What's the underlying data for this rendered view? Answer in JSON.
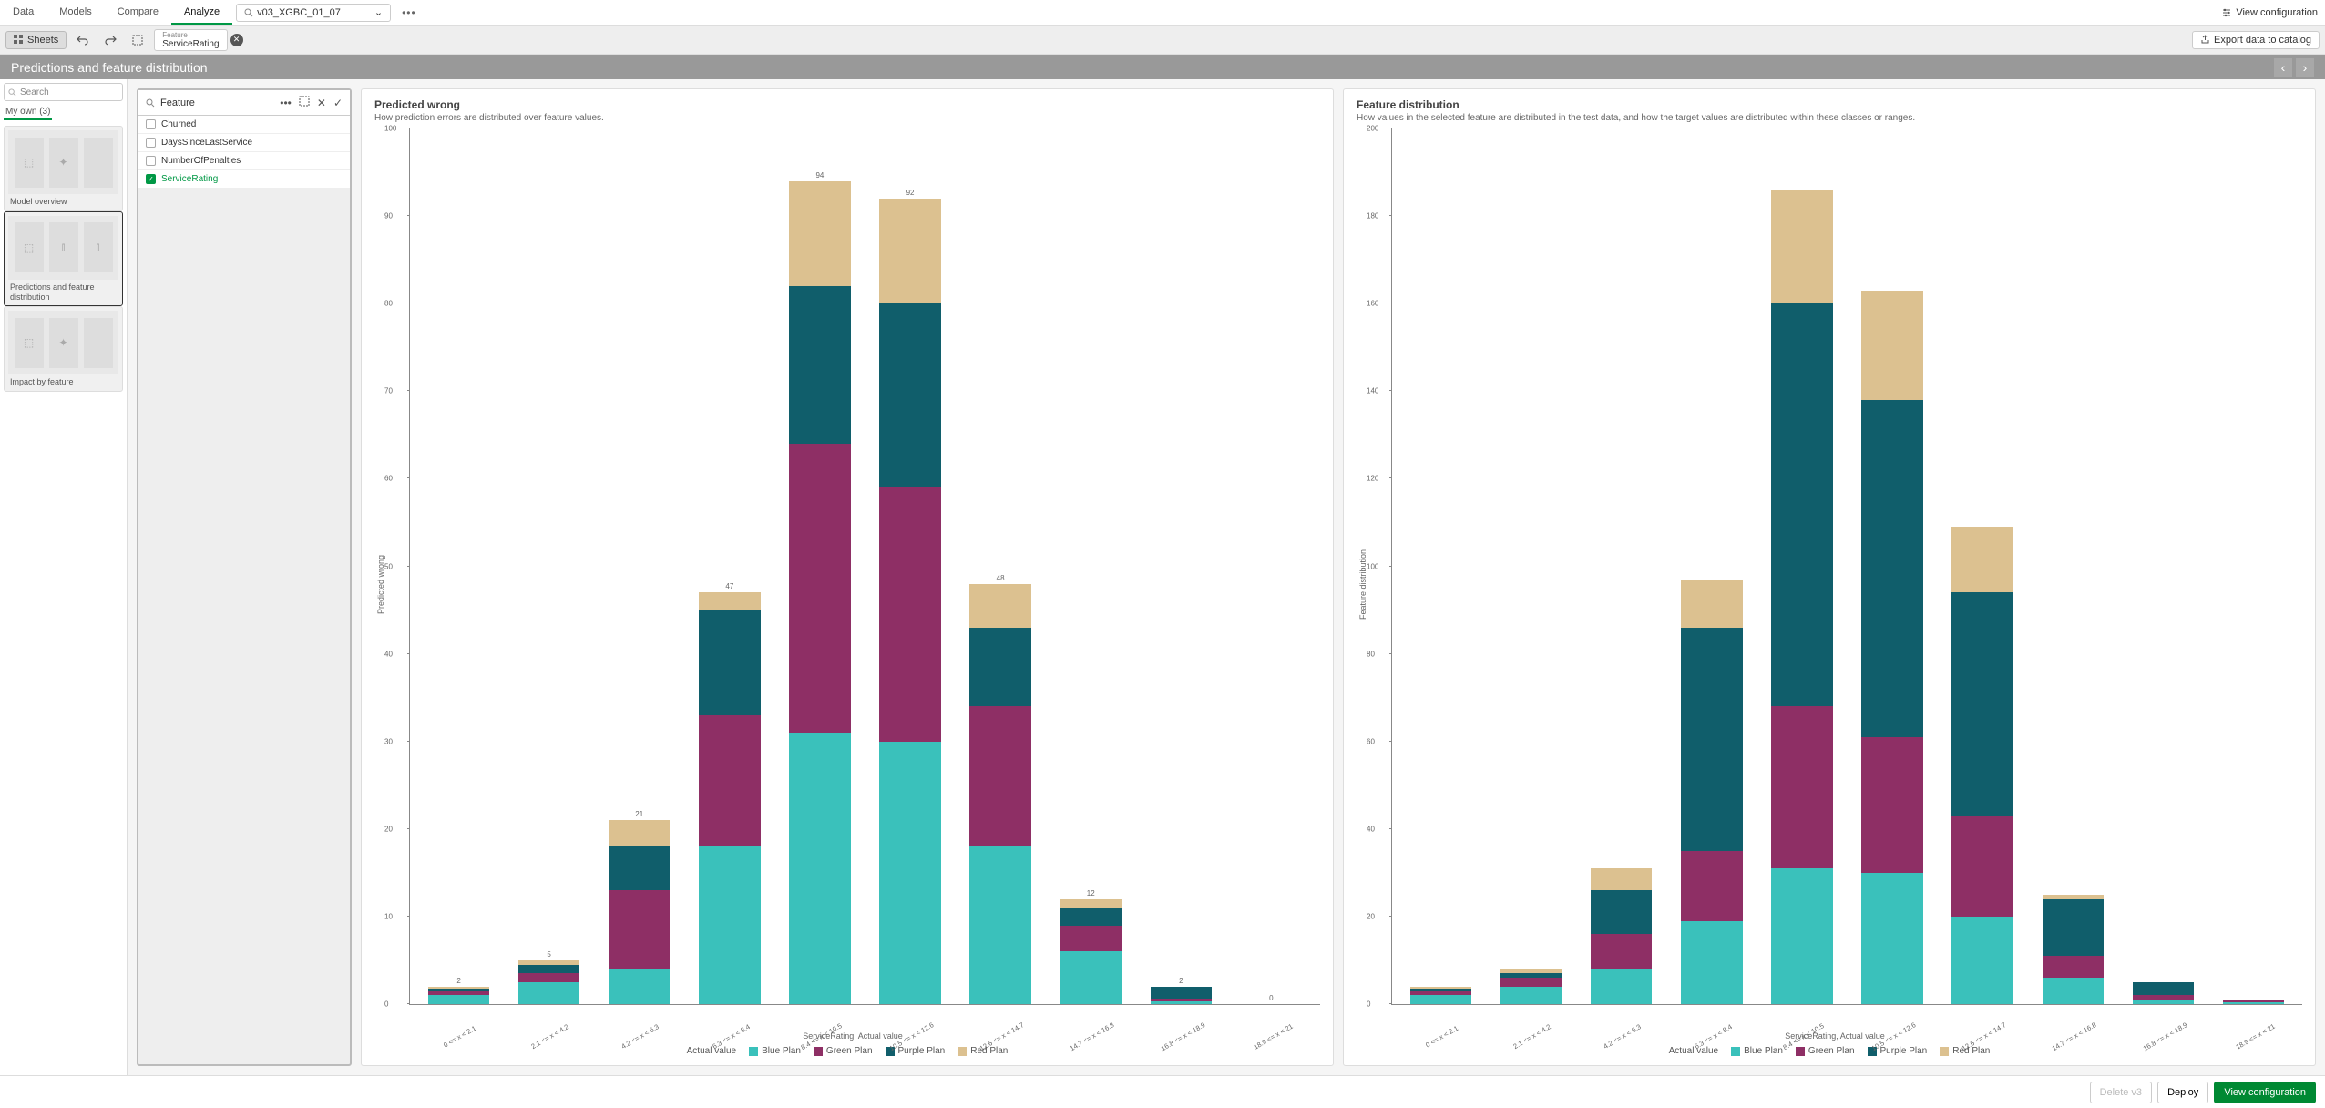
{
  "topbar": {
    "tabs": [
      "Data",
      "Models",
      "Compare",
      "Analyze"
    ],
    "active_tab": 3,
    "model_name": "v03_XGBC_01_07",
    "view_config_label": "View configuration"
  },
  "secondbar": {
    "sheets_label": "Sheets",
    "feature_chip_label": "Feature",
    "feature_chip_value": "ServiceRating",
    "export_label": "Export data to catalog"
  },
  "page_title": "Predictions and feature distribution",
  "sidebar": {
    "search_placeholder": "Search",
    "myown_label": "My own (3)",
    "thumbs": [
      {
        "label": "Model overview"
      },
      {
        "label": "Predictions and feature distribution"
      },
      {
        "label": "Impact by feature"
      }
    ],
    "selected": 1
  },
  "feature_panel": {
    "title": "Feature",
    "items": [
      {
        "label": "Churned",
        "checked": false
      },
      {
        "label": "DaysSinceLastService",
        "checked": false
      },
      {
        "label": "NumberOfPenalties",
        "checked": false
      },
      {
        "label": "ServiceRating",
        "checked": true
      }
    ]
  },
  "colors": {
    "blue_plan": "#3ac1bb",
    "green_plan": "#8e2f65",
    "purple_plan": "#105e6b",
    "red_plan": "#dcc190"
  },
  "legend": {
    "lead": "Actual value",
    "items": [
      {
        "label": "Blue Plan",
        "color_key": "blue_plan"
      },
      {
        "label": "Green Plan",
        "color_key": "green_plan"
      },
      {
        "label": "Purple Plan",
        "color_key": "purple_plan"
      },
      {
        "label": "Red Plan",
        "color_key": "red_plan"
      }
    ]
  },
  "categories": [
    "0 <= x < 2.1",
    "2.1 <= x < 4.2",
    "4.2 <= x < 6.3",
    "6.3 <= x < 8.4",
    "8.4 <= x < 10.5",
    "10.5 <= x < 12.6",
    "12.6 <= x < 14.7",
    "14.7 <= x < 16.8",
    "16.8 <= x < 18.9",
    "18.9 <= x < 21"
  ],
  "chart1": {
    "title": "Predicted wrong",
    "subtitle": "How prediction errors are distributed over feature values.",
    "ylabel": "Predicted wrong",
    "xlabel": "ServiceRating, Actual value",
    "ymax": 100,
    "ytick_step": 10,
    "bars": [
      {
        "total": 2,
        "stack": {
          "blue_plan": 1,
          "green_plan": 0.5,
          "purple_plan": 0.3,
          "red_plan": 0.2
        }
      },
      {
        "total": 5,
        "stack": {
          "blue_plan": 2.5,
          "green_plan": 1,
          "purple_plan": 1,
          "red_plan": 0.5
        }
      },
      {
        "total": 21,
        "stack": {
          "blue_plan": 4,
          "green_plan": 9,
          "purple_plan": 5,
          "red_plan": 3
        }
      },
      {
        "total": 47,
        "stack": {
          "blue_plan": 18,
          "green_plan": 15,
          "purple_plan": 12,
          "red_plan": 2
        }
      },
      {
        "total": 94,
        "stack": {
          "blue_plan": 31,
          "green_plan": 33,
          "purple_plan": 18,
          "red_plan": 12
        }
      },
      {
        "total": 92,
        "stack": {
          "blue_plan": 30,
          "green_plan": 29,
          "purple_plan": 21,
          "red_plan": 12
        }
      },
      {
        "total": 48,
        "stack": {
          "blue_plan": 18,
          "green_plan": 16,
          "purple_plan": 9,
          "red_plan": 5
        }
      },
      {
        "total": 12,
        "stack": {
          "blue_plan": 6,
          "green_plan": 3,
          "purple_plan": 2,
          "red_plan": 1
        }
      },
      {
        "total": 2,
        "stack": {
          "blue_plan": 0.3,
          "green_plan": 0.3,
          "purple_plan": 1.4,
          "red_plan": 0
        }
      },
      {
        "total": 0,
        "stack": {
          "blue_plan": 0,
          "green_plan": 0,
          "purple_plan": 0,
          "red_plan": 0
        }
      }
    ]
  },
  "chart2": {
    "title": "Feature distribution",
    "subtitle": "How values in the selected feature are distributed in the test data, and how the target values are distributed within these classes or ranges.",
    "ylabel": "Feature distribution",
    "xlabel": "ServiceRating, Actual value",
    "ymax": 200,
    "ytick_step": 20,
    "bars": [
      {
        "total": null,
        "stack": {
          "blue_plan": 2,
          "green_plan": 1,
          "purple_plan": 0.5,
          "red_plan": 0.5
        }
      },
      {
        "total": null,
        "stack": {
          "blue_plan": 4,
          "green_plan": 2,
          "purple_plan": 1,
          "red_plan": 1
        }
      },
      {
        "total": null,
        "stack": {
          "blue_plan": 8,
          "green_plan": 8,
          "purple_plan": 10,
          "red_plan": 5
        }
      },
      {
        "total": null,
        "stack": {
          "blue_plan": 19,
          "green_plan": 16,
          "purple_plan": 51,
          "red_plan": 11
        }
      },
      {
        "total": null,
        "stack": {
          "blue_plan": 31,
          "green_plan": 37,
          "purple_plan": 92,
          "red_plan": 26
        }
      },
      {
        "total": null,
        "stack": {
          "blue_plan": 30,
          "green_plan": 31,
          "purple_plan": 77,
          "red_plan": 25
        }
      },
      {
        "total": null,
        "stack": {
          "blue_plan": 20,
          "green_plan": 23,
          "purple_plan": 51,
          "red_plan": 15
        }
      },
      {
        "total": null,
        "stack": {
          "blue_plan": 6,
          "green_plan": 5,
          "purple_plan": 13,
          "red_plan": 1
        }
      },
      {
        "total": null,
        "stack": {
          "blue_plan": 1,
          "green_plan": 1,
          "purple_plan": 3,
          "red_plan": 0
        }
      },
      {
        "total": null,
        "stack": {
          "blue_plan": 0.5,
          "green_plan": 0.5,
          "purple_plan": 0,
          "red_plan": 0
        }
      }
    ]
  },
  "footer": {
    "delete_label": "Delete v3",
    "deploy_label": "Deploy",
    "view_label": "View configuration"
  }
}
